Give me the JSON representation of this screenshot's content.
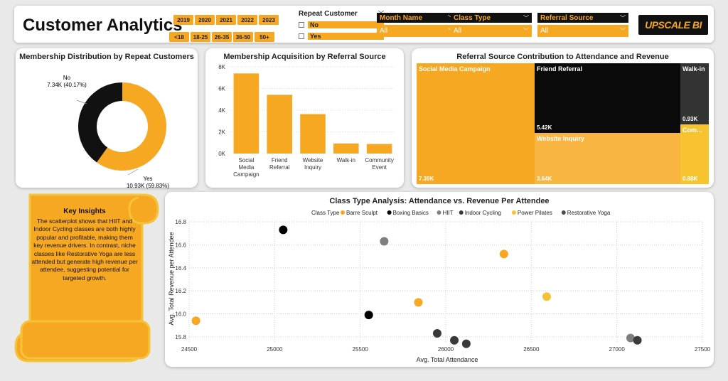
{
  "header": {
    "title": "Customer Analytics",
    "years": [
      "2019",
      "2020",
      "2021",
      "2022",
      "2023"
    ],
    "age_groups": [
      "<18",
      "18-25",
      "26-35",
      "36-50",
      "50+"
    ],
    "repeat_customer": {
      "label": "Repeat Customer",
      "options": [
        "No",
        "Yes"
      ]
    },
    "slicers": [
      {
        "label": "Month Name",
        "value": "All"
      },
      {
        "label": "Class Type",
        "value": "All"
      },
      {
        "label": "Referral Source",
        "value": "All"
      }
    ],
    "logo": "UPSCALE BI"
  },
  "donut": {
    "title": "Membership Distribution by Repeat Customers",
    "chart_data": {
      "type": "pie",
      "slices": [
        {
          "label": "No",
          "value": 7.34,
          "value_label": "7.34K (40.17%)",
          "color": "#111111"
        },
        {
          "label": "Yes",
          "value": 10.93,
          "value_label": "10.93K (59.83%)",
          "color": "#f7a823"
        }
      ]
    }
  },
  "bar": {
    "title": "Membership Acquisition by Referral Source",
    "chart_data": {
      "type": "bar",
      "categories": [
        [
          "Social",
          "Media",
          "Campaign"
        ],
        [
          "Friend",
          "Referral"
        ],
        [
          "Website",
          "Inquiry"
        ],
        [
          "Walk-in"
        ],
        [
          "Community",
          "Event"
        ]
      ],
      "values": [
        7390,
        5420,
        3640,
        930,
        880
      ],
      "y_ticks": [
        "0K",
        "2K",
        "4K",
        "6K",
        "8K"
      ],
      "ylim": [
        0,
        8000
      ],
      "color": "#f7a823"
    }
  },
  "treemap": {
    "title": "Referral Source Contribution to Attendance and Revenue",
    "items": [
      {
        "label": "Social Media Campaign",
        "value": "7.39K"
      },
      {
        "label": "Friend Referral",
        "value": "5.42K"
      },
      {
        "label": "Walk-in",
        "value": "0.93K"
      },
      {
        "label": "Website Inquiry",
        "value": "3.64K"
      },
      {
        "label": "Com...",
        "value": "0.88K"
      }
    ]
  },
  "insights": {
    "title": "Key Insights",
    "text": "The scatterplot shows that HIIT and Indoor Cycling classes are both highly popular and profitable, making them key revenue drivers. In contrast, niche classes like Restorative Yoga are less attended but generate high revenue per attendee, suggesting potential for targeted growth."
  },
  "scatter": {
    "title": "Class Type Analysis: Attendance vs. Revenue Per Attendee",
    "legend_title": "Class Type",
    "xlabel": "Avg. Total Attendance",
    "ylabel": "Avg. Total Revenue per Attendee",
    "chart_data": {
      "type": "scatter",
      "xlim": [
        24500,
        27500
      ],
      "ylim": [
        15.75,
        16.8
      ],
      "x_ticks": [
        24500,
        25000,
        25500,
        26000,
        26500,
        27000,
        27500
      ],
      "y_ticks": [
        15.8,
        16.0,
        16.2,
        16.4,
        16.6,
        16.8
      ],
      "series": [
        {
          "name": "Barre Sculpt",
          "color": "#f7a823",
          "points": [
            [
              24540,
              15.94
            ],
            [
              25840,
              16.1
            ],
            [
              26340,
              16.52
            ]
          ]
        },
        {
          "name": "Boxing Basics",
          "color": "#000000",
          "points": [
            [
              25050,
              16.73
            ],
            [
              25550,
              15.99
            ]
          ]
        },
        {
          "name": "HIIT",
          "color": "#7f7f7f",
          "points": [
            [
              25640,
              16.63
            ],
            [
              27080,
              15.79
            ]
          ]
        },
        {
          "name": "Indoor Cycling",
          "color": "#3a3a3a",
          "points": [
            [
              25950,
              15.83
            ],
            [
              26050,
              15.77
            ],
            [
              26120,
              15.74
            ],
            [
              27120,
              15.77
            ]
          ]
        },
        {
          "name": "Power Pilates",
          "color": "#f5c33a",
          "points": [
            [
              26590,
              16.15
            ]
          ]
        },
        {
          "name": "Restorative Yoga",
          "color": "#4d4d4d",
          "points": []
        }
      ]
    }
  }
}
